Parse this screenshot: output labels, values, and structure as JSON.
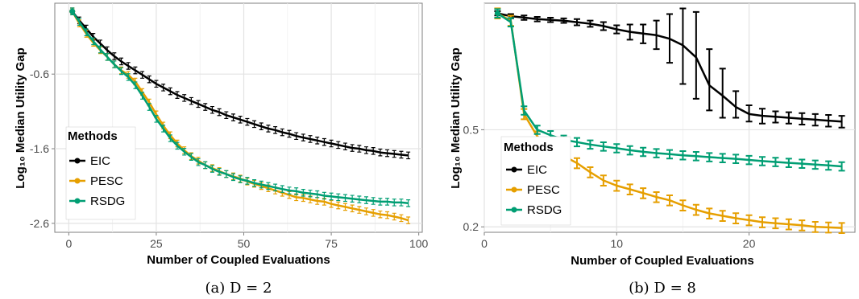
{
  "chart_data": [
    {
      "type": "line",
      "caption": "(a)  D = 2",
      "xlabel": "Number of Coupled Evaluations",
      "ylabel": "Log₁₀ Median Utility Gap",
      "xlim": [
        -4,
        101
      ],
      "ylim": [
        -2.72,
        0.35
      ],
      "xticks": [
        0,
        25,
        50,
        75,
        100
      ],
      "yticks": [
        -0.6,
        -1.6,
        -2.6
      ],
      "ytick_labels": [
        "-0.6",
        "-1.6",
        "-2.6"
      ],
      "yscale": "linear",
      "grid": true,
      "error_bars": true,
      "legend": {
        "title": "Methods",
        "position": "bottom-left"
      },
      "series": [
        {
          "name": "EIC",
          "color": "#000000",
          "x": [
            1,
            3,
            5,
            7,
            9,
            11,
            13,
            15,
            17,
            19,
            21,
            23,
            25,
            27,
            29,
            31,
            33,
            35,
            37,
            39,
            41,
            43,
            45,
            47,
            49,
            51,
            53,
            55,
            57,
            59,
            61,
            63,
            65,
            67,
            69,
            71,
            73,
            75,
            77,
            79,
            81,
            83,
            85,
            87,
            89,
            91,
            93,
            95,
            97
          ],
          "y": [
            0.24,
            0.12,
            0.01,
            -0.1,
            -0.19,
            -0.28,
            -0.36,
            -0.43,
            -0.49,
            -0.55,
            -0.61,
            -0.67,
            -0.73,
            -0.78,
            -0.83,
            -0.88,
            -0.92,
            -0.96,
            -1.0,
            -1.04,
            -1.08,
            -1.11,
            -1.15,
            -1.18,
            -1.21,
            -1.24,
            -1.27,
            -1.3,
            -1.33,
            -1.35,
            -1.38,
            -1.4,
            -1.43,
            -1.45,
            -1.47,
            -1.49,
            -1.51,
            -1.53,
            -1.55,
            -1.57,
            -1.59,
            -1.6,
            -1.62,
            -1.63,
            -1.65,
            -1.66,
            -1.67,
            -1.68,
            -1.69
          ],
          "err": 0.045
        },
        {
          "name": "PESC",
          "color": "#E69F00",
          "x": [
            1,
            3,
            5,
            7,
            9,
            11,
            13,
            15,
            17,
            19,
            21,
            23,
            25,
            27,
            29,
            31,
            33,
            35,
            37,
            39,
            41,
            43,
            45,
            47,
            49,
            51,
            53,
            55,
            57,
            59,
            61,
            63,
            65,
            67,
            69,
            71,
            73,
            75,
            77,
            79,
            81,
            83,
            85,
            87,
            89,
            91,
            93,
            95,
            97
          ],
          "y": [
            0.24,
            0.08,
            -0.06,
            -0.18,
            -0.28,
            -0.37,
            -0.47,
            -0.55,
            -0.61,
            -0.7,
            -0.84,
            -0.98,
            -1.14,
            -1.29,
            -1.42,
            -1.53,
            -1.62,
            -1.7,
            -1.76,
            -1.82,
            -1.86,
            -1.9,
            -1.94,
            -1.97,
            -2.0,
            -2.04,
            -2.07,
            -2.1,
            -2.13,
            -2.16,
            -2.19,
            -2.22,
            -2.25,
            -2.26,
            -2.28,
            -2.3,
            -2.31,
            -2.34,
            -2.36,
            -2.38,
            -2.4,
            -2.42,
            -2.44,
            -2.46,
            -2.48,
            -2.49,
            -2.51,
            -2.53,
            -2.56
          ],
          "err": 0.045
        },
        {
          "name": "RSDG",
          "color": "#009E73",
          "x": [
            1,
            3,
            5,
            7,
            9,
            11,
            13,
            15,
            17,
            19,
            21,
            23,
            25,
            27,
            29,
            31,
            33,
            35,
            37,
            39,
            41,
            43,
            45,
            47,
            49,
            51,
            53,
            55,
            57,
            59,
            61,
            63,
            65,
            67,
            69,
            71,
            73,
            75,
            77,
            79,
            81,
            83,
            85,
            87,
            89,
            91,
            93,
            95,
            97
          ],
          "y": [
            0.24,
            0.1,
            -0.04,
            -0.16,
            -0.27,
            -0.37,
            -0.47,
            -0.56,
            -0.64,
            -0.75,
            -0.89,
            -1.04,
            -1.2,
            -1.33,
            -1.46,
            -1.56,
            -1.64,
            -1.71,
            -1.78,
            -1.82,
            -1.87,
            -1.91,
            -1.94,
            -1.98,
            -2.01,
            -2.03,
            -2.06,
            -2.08,
            -2.1,
            -2.12,
            -2.14,
            -2.16,
            -2.17,
            -2.19,
            -2.2,
            -2.21,
            -2.23,
            -2.24,
            -2.25,
            -2.26,
            -2.27,
            -2.28,
            -2.29,
            -2.3,
            -2.31,
            -2.31,
            -2.32,
            -2.32,
            -2.33
          ],
          "err": 0.045
        }
      ]
    },
    {
      "type": "line",
      "caption": "(b)  D = 8",
      "xlabel": "Number of Coupled Evaluations",
      "ylabel": "Log₁₀ Median Utility Gap",
      "xlim": [
        0,
        28
      ],
      "ylim": [
        0.19,
        1.65
      ],
      "xticks": [
        0,
        10,
        20
      ],
      "yticks": [
        0.5,
        0.2
      ],
      "ytick_labels": [
        "0.5",
        "0.2"
      ],
      "yscale": "log",
      "grid": true,
      "error_bars": true,
      "legend": {
        "title": "Methods",
        "position": "bottom-left"
      },
      "series": [
        {
          "name": "EIC",
          "color": "#000000",
          "x": [
            1,
            2,
            3,
            4,
            5,
            6,
            7,
            8,
            9,
            10,
            11,
            12,
            13,
            14,
            15,
            16,
            17,
            18,
            19,
            20,
            21,
            22,
            23,
            24,
            25,
            26,
            27
          ],
          "y": [
            1.5,
            1.46,
            1.44,
            1.42,
            1.41,
            1.4,
            1.38,
            1.36,
            1.33,
            1.29,
            1.26,
            1.24,
            1.22,
            1.18,
            1.11,
            0.99,
            0.76,
            0.69,
            0.62,
            0.58,
            0.57,
            0.565,
            0.56,
            0.555,
            0.55,
            0.545,
            0.54
          ],
          "err_low": [
            0.03,
            0.03,
            0.03,
            0.03,
            0.03,
            0.03,
            0.04,
            0.04,
            0.05,
            0.05,
            0.09,
            0.11,
            0.15,
            0.24,
            0.34,
            0.32,
            0.16,
            0.13,
            0.06,
            0.04,
            0.04,
            0.03,
            0.03,
            0.03,
            0.03,
            0.03,
            0.03
          ],
          "err_high": [
            0.03,
            0.03,
            0.03,
            0.03,
            0.03,
            0.03,
            0.04,
            0.04,
            0.05,
            0.05,
            0.09,
            0.11,
            0.18,
            0.31,
            0.46,
            0.53,
            0.31,
            0.2,
            0.1,
            0.05,
            0.04,
            0.03,
            0.03,
            0.03,
            0.03,
            0.03,
            0.03
          ]
        },
        {
          "name": "PESC",
          "color": "#E69F00",
          "x": [
            1,
            2,
            3,
            4,
            5,
            6,
            7,
            8,
            9,
            10,
            11,
            12,
            13,
            14,
            15,
            16,
            17,
            18,
            19,
            20,
            21,
            22,
            23,
            24,
            25,
            26,
            27
          ],
          "y": [
            1.5,
            1.4,
            0.58,
            0.47,
            0.42,
            0.39,
            0.365,
            0.335,
            0.31,
            0.295,
            0.285,
            0.275,
            0.265,
            0.257,
            0.245,
            0.235,
            0.227,
            0.222,
            0.217,
            0.213,
            0.209,
            0.207,
            0.205,
            0.203,
            0.2,
            0.199,
            0.198
          ],
          "err": 0.012
        },
        {
          "name": "RSDG",
          "color": "#009E73",
          "x": [
            1,
            2,
            3,
            4,
            5,
            6,
            7,
            8,
            9,
            10,
            11,
            12,
            13,
            14,
            15,
            16,
            17,
            18,
            19,
            20,
            21,
            22,
            23,
            24,
            25,
            26,
            27
          ],
          "y": [
            1.5,
            1.38,
            0.6,
            0.5,
            0.475,
            0.455,
            0.445,
            0.435,
            0.427,
            0.42,
            0.412,
            0.406,
            0.401,
            0.397,
            0.393,
            0.39,
            0.386,
            0.383,
            0.38,
            0.376,
            0.372,
            0.369,
            0.366,
            0.363,
            0.36,
            0.357,
            0.354
          ],
          "err": 0.01
        }
      ]
    }
  ]
}
